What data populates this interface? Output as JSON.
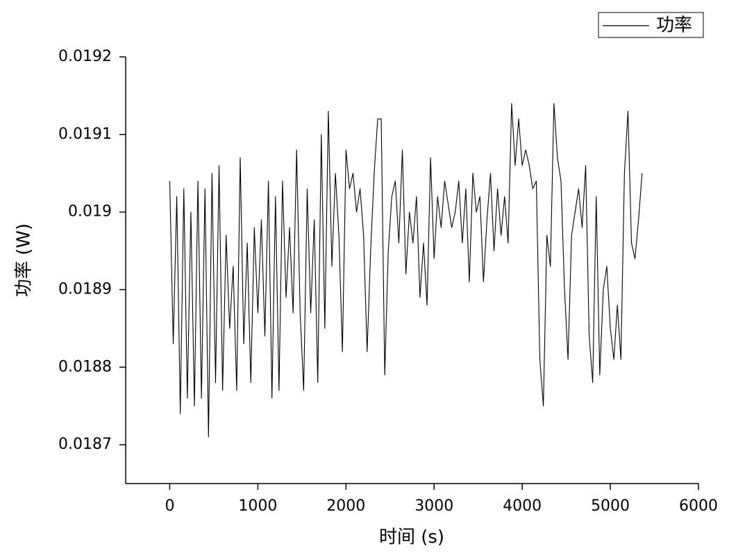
{
  "chart_data": {
    "type": "line",
    "x_label": "时间 (s)",
    "y_label": "功率 (W)",
    "xlim": [
      -500,
      6000
    ],
    "ylim": [
      0.01865,
      0.0192
    ],
    "xticks": [
      0,
      1000,
      2000,
      3000,
      4000,
      5000,
      6000
    ],
    "yticks": [
      0.0187,
      0.0188,
      0.0189,
      0.019,
      0.0191,
      0.0192
    ],
    "legend": "upper right",
    "x": [
      0,
      40,
      80,
      120,
      160,
      200,
      240,
      280,
      320,
      360,
      400,
      440,
      480,
      520,
      560,
      600,
      640,
      680,
      720,
      760,
      800,
      840,
      880,
      920,
      960,
      1000,
      1040,
      1080,
      1120,
      1160,
      1200,
      1240,
      1280,
      1320,
      1360,
      1400,
      1440,
      1480,
      1520,
      1560,
      1600,
      1640,
      1680,
      1720,
      1760,
      1800,
      1840,
      1880,
      1920,
      1960,
      2000,
      2040,
      2080,
      2120,
      2160,
      2200,
      2240,
      2280,
      2320,
      2360,
      2400,
      2440,
      2480,
      2520,
      2560,
      2600,
      2640,
      2680,
      2720,
      2760,
      2800,
      2840,
      2880,
      2920,
      2960,
      3000,
      3040,
      3080,
      3120,
      3160,
      3200,
      3240,
      3280,
      3320,
      3360,
      3400,
      3440,
      3480,
      3520,
      3560,
      3600,
      3640,
      3680,
      3720,
      3760,
      3800,
      3840,
      3880,
      3920,
      3960,
      4000,
      4040,
      4080,
      4120,
      4160,
      4200,
      4240,
      4280,
      4320,
      4360,
      4400,
      4440,
      4480,
      4520,
      4560,
      4600,
      4640,
      4680,
      4720,
      4760,
      4800,
      4840,
      4880,
      4920,
      4960,
      5000,
      5040,
      5080,
      5120,
      5160,
      5200,
      5240,
      5280,
      5320,
      5360
    ],
    "series": [
      {
        "name": "功率",
        "color": "#000000",
        "values": [
          0.01904,
          0.01883,
          0.01902,
          0.01874,
          0.01903,
          0.01876,
          0.019,
          0.01875,
          0.01904,
          0.01876,
          0.01903,
          0.01871,
          0.01905,
          0.01878,
          0.01906,
          0.01877,
          0.01897,
          0.01885,
          0.01893,
          0.01877,
          0.01907,
          0.01883,
          0.01896,
          0.01878,
          0.01898,
          0.01887,
          0.01899,
          0.01884,
          0.01904,
          0.01876,
          0.01902,
          0.01877,
          0.01904,
          0.01889,
          0.01898,
          0.01887,
          0.01908,
          0.01887,
          0.01877,
          0.01903,
          0.01887,
          0.01899,
          0.01878,
          0.0191,
          0.01885,
          0.01913,
          0.01893,
          0.01905,
          0.01897,
          0.01882,
          0.01908,
          0.01903,
          0.01905,
          0.019,
          0.01903,
          0.01897,
          0.01882,
          0.01895,
          0.01905,
          0.01912,
          0.01912,
          0.01879,
          0.01895,
          0.01902,
          0.01904,
          0.01896,
          0.01908,
          0.01892,
          0.019,
          0.01896,
          0.01902,
          0.01889,
          0.01896,
          0.01888,
          0.01907,
          0.01894,
          0.01902,
          0.01898,
          0.01904,
          0.01901,
          0.01898,
          0.019,
          0.01904,
          0.01896,
          0.01903,
          0.01891,
          0.01905,
          0.019,
          0.01902,
          0.01891,
          0.01899,
          0.01905,
          0.01895,
          0.01903,
          0.01897,
          0.01902,
          0.01896,
          0.01914,
          0.01906,
          0.01912,
          0.01906,
          0.01908,
          0.01906,
          0.01903,
          0.01904,
          0.01881,
          0.01875,
          0.01897,
          0.01893,
          0.01914,
          0.01907,
          0.01904,
          0.0189,
          0.01881,
          0.01897,
          0.019,
          0.01903,
          0.01898,
          0.01906,
          0.01884,
          0.01878,
          0.01902,
          0.01879,
          0.0189,
          0.01893,
          0.01885,
          0.01881,
          0.01888,
          0.01881,
          0.01905,
          0.01913,
          0.01896,
          0.01894,
          0.01899,
          0.01905
        ]
      }
    ]
  }
}
